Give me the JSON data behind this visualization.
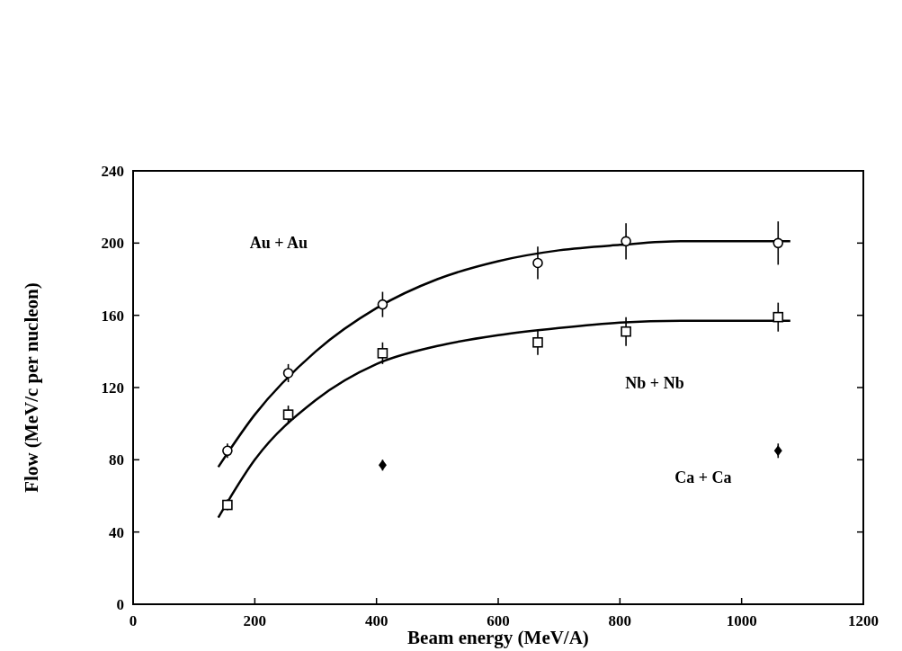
{
  "chart_data": {
    "type": "scatter",
    "xlabel": "Beam energy (MeV/A)",
    "ylabel": "Flow (MeV/c per nucleon)",
    "xlim": [
      0,
      1200
    ],
    "ylim": [
      0,
      240
    ],
    "xticks": [
      0,
      200,
      400,
      600,
      800,
      1000,
      1200
    ],
    "yticks": [
      0,
      40,
      80,
      120,
      160,
      200,
      240
    ],
    "grid": false,
    "series": [
      {
        "marker": "circle",
        "color": "#000000",
        "x": [
          155,
          255,
          410,
          665,
          810,
          1060
        ],
        "values": [
          85,
          128,
          166,
          189,
          201,
          200
        ],
        "errors": [
          4,
          5,
          7,
          9,
          10,
          12
        ]
      },
      {
        "marker": "square",
        "color": "#000000",
        "x": [
          155,
          255,
          410,
          665,
          810,
          1060
        ],
        "values": [
          55,
          105,
          139,
          145,
          151,
          159
        ],
        "errors": [
          3,
          5,
          6,
          7,
          8,
          8
        ]
      },
      {
        "marker": "diamond",
        "color": "#000000",
        "x": [
          410,
          1060
        ],
        "values": [
          77,
          85
        ],
        "errors": [
          3,
          4
        ]
      },
      {
        "type": "line",
        "marker": "none",
        "line_style": "solid",
        "color": "#000000",
        "x": [
          140,
          200,
          300,
          400,
          500,
          600,
          700,
          800,
          900,
          1000,
          1080
        ],
        "values": [
          76,
          105,
          140,
          164,
          180,
          190,
          196,
          199,
          201,
          201,
          201
        ]
      },
      {
        "type": "line",
        "marker": "none",
        "line_style": "solid",
        "color": "#000000",
        "x": [
          140,
          200,
          300,
          400,
          500,
          600,
          700,
          800,
          900,
          1000,
          1080
        ],
        "values": [
          48,
          80,
          113,
          133,
          143,
          149,
          153,
          156,
          157,
          157,
          157
        ]
      }
    ],
    "annotations": [
      "Au + Au",
      "Nb + Nb",
      "Ca + Ca"
    ]
  }
}
